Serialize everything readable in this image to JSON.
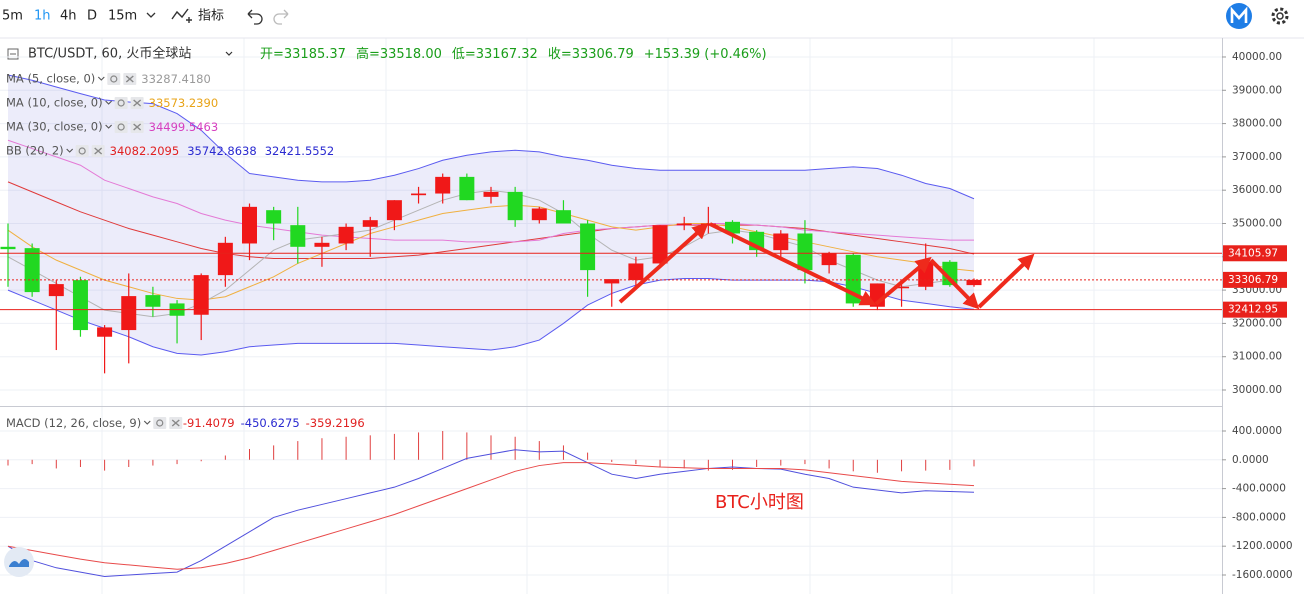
{
  "toolbar": {
    "intervals": [
      "5m",
      "1h",
      "4h",
      "D",
      "15m"
    ],
    "indicators": "指标"
  },
  "legend": {
    "symbol": "BTC/USDT, 60, 火币全球站",
    "open": "开=33185.37",
    "high": "高=33518.00",
    "low": "低=33167.32",
    "close": "收=33306.79",
    "change": "+153.39 (+0.46%)",
    "indicators": [
      {
        "name": "MA (5, close, 0)",
        "values": [
          "33287.4180"
        ],
        "colors": [
          "#9a9a9a"
        ]
      },
      {
        "name": "MA (10, close, 0)",
        "values": [
          "33573.2390"
        ],
        "colors": [
          "#e8a317"
        ]
      },
      {
        "name": "MA (30, close, 0)",
        "values": [
          "34499.5463"
        ],
        "colors": [
          "#d63fbf"
        ]
      },
      {
        "name": "BB (20, 2)",
        "values": [
          "34082.2095",
          "35742.8638",
          "32421.5552"
        ],
        "colors": [
          "#e02020",
          "#2a2ad0",
          "#2a2ad0"
        ]
      }
    ]
  },
  "chart_data": [
    {
      "type": "candlestick",
      "up_color": "#f01818",
      "down_color": "#21d821",
      "ylim": [
        29550,
        40570
      ],
      "yticks": [
        {
          "value": 30000,
          "label": "30000.00"
        },
        {
          "value": 31000,
          "label": "31000.00"
        },
        {
          "value": 32000,
          "label": "32000.00"
        },
        {
          "value": 33000,
          "label": "33000.00"
        },
        {
          "value": 34000,
          "label": "34000.00"
        },
        {
          "value": 35000,
          "label": "35000.00"
        },
        {
          "value": 36000,
          "label": "36000.00"
        },
        {
          "value": 37000,
          "label": "37000.00"
        },
        {
          "value": 38000,
          "label": "38000.00"
        },
        {
          "value": 39000,
          "label": "39000.00"
        },
        {
          "value": 40000,
          "label": "40000.00"
        }
      ],
      "grid": true,
      "open": [
        34300,
        34260,
        32820,
        33300,
        31600,
        31800,
        32850,
        32600,
        32260,
        33450,
        34400,
        35400,
        34950,
        34300,
        34400,
        34900,
        35100,
        35850,
        35900,
        36400,
        35800,
        35950,
        35100,
        35400,
        35000,
        33200,
        33300,
        33800,
        34950,
        35000,
        35050,
        34750,
        34200,
        34700,
        33750,
        34060,
        32500,
        33100,
        33100,
        33850,
        33150
      ],
      "high": [
        35000,
        34400,
        33300,
        33400,
        31950,
        33500,
        33100,
        32700,
        33500,
        34600,
        35600,
        35500,
        35500,
        34600,
        35000,
        35200,
        35700,
        36100,
        36500,
        36500,
        36100,
        36100,
        35500,
        35700,
        35100,
        33300,
        34000,
        34950,
        35200,
        35500,
        35100,
        34800,
        34800,
        35100,
        34150,
        34100,
        33200,
        33200,
        34400,
        33900,
        33350
      ],
      "low": [
        33100,
        32800,
        31200,
        31600,
        30500,
        30800,
        32200,
        31400,
        31500,
        33100,
        33900,
        34500,
        33800,
        33700,
        34200,
        34000,
        34800,
        35600,
        35600,
        35700,
        35600,
        34900,
        35000,
        35000,
        32800,
        32500,
        33100,
        33700,
        34800,
        34700,
        34400,
        34000,
        34000,
        33200,
        33500,
        32500,
        32400,
        32500,
        33000,
        33100,
        33100
      ],
      "close": [
        34230,
        32940,
        33180,
        31800,
        31880,
        32820,
        32500,
        32230,
        33450,
        34420,
        35500,
        35000,
        34300,
        34420,
        34900,
        35100,
        35700,
        35900,
        36400,
        35700,
        35950,
        35100,
        35450,
        35000,
        33600,
        33330,
        33800,
        34950,
        35000,
        35000,
        34700,
        34200,
        34700,
        33600,
        34100,
        32600,
        33200,
        33100,
        33850,
        33150,
        33306.79
      ],
      "series": [
        {
          "name": "BB upper",
          "color": "#5b5bf0",
          "values": [
            39460,
            39300,
            39100,
            38900,
            38710,
            38650,
            38600,
            38300,
            37800,
            37100,
            36500,
            36400,
            36300,
            36250,
            36250,
            36300,
            36450,
            36650,
            36900,
            37050,
            37150,
            37200,
            37150,
            37000,
            36900,
            36750,
            36650,
            36600,
            36600,
            36600,
            36600,
            36600,
            36600,
            36600,
            36650,
            36700,
            36650,
            36450,
            36200,
            36050,
            35742.8638
          ]
        },
        {
          "name": "BB lower",
          "color": "#5b5bf0",
          "values": [
            33000,
            32700,
            32400,
            32100,
            31850,
            31600,
            31300,
            31100,
            31050,
            31150,
            31300,
            31350,
            31400,
            31400,
            31400,
            31400,
            31400,
            31350,
            31300,
            31250,
            31200,
            31300,
            31500,
            32000,
            32550,
            32900,
            33150,
            33300,
            33350,
            33350,
            33300,
            33300,
            33300,
            33300,
            33250,
            33100,
            32900,
            32700,
            32600,
            32500,
            32421.5552
          ]
        },
        {
          "name": "BB basis",
          "color": "#e03a3a",
          "values": [
            36250,
            35950,
            35650,
            35350,
            35100,
            34850,
            34650,
            34450,
            34250,
            34100,
            34000,
            33950,
            33950,
            33950,
            33950,
            33950,
            34000,
            34050,
            34150,
            34250,
            34350,
            34450,
            34550,
            34650,
            34750,
            34850,
            34900,
            34950,
            34950,
            34950,
            34950,
            34950,
            34900,
            34850,
            34750,
            34650,
            34550,
            34450,
            34350,
            34250,
            34082.2095
          ]
        },
        {
          "name": "MA30",
          "color": "#e47ad6",
          "values": [
            37500,
            37250,
            37000,
            36750,
            36300,
            36050,
            35800,
            35600,
            35300,
            35100,
            34950,
            34850,
            34750,
            34650,
            34600,
            34550,
            34500,
            34500,
            34500,
            34450,
            34450,
            34450,
            34500,
            34700,
            34800,
            34850,
            34900,
            34950,
            34950,
            35000,
            35000,
            34950,
            34900,
            34800,
            34750,
            34700,
            34650,
            34600,
            34550,
            34500,
            34499.5463
          ]
        },
        {
          "name": "MA10",
          "color": "#f0b040",
          "values": [
            34800,
            34300,
            33900,
            33600,
            33300,
            33100,
            32900,
            32750,
            32700,
            32800,
            33100,
            33400,
            33800,
            34100,
            34400,
            34700,
            34900,
            35100,
            35300,
            35400,
            35500,
            35550,
            35500,
            35300,
            35100,
            34900,
            34800,
            34900,
            35000,
            35000,
            34900,
            34750,
            34600,
            34450,
            34300,
            34150,
            34000,
            33900,
            33800,
            33650,
            33573.239
          ]
        },
        {
          "name": "MA5",
          "color": "#b4b4b4",
          "values": [
            34000,
            33600,
            33200,
            32800,
            32400,
            32300,
            32200,
            32300,
            32600,
            33000,
            33600,
            34200,
            34500,
            34600,
            34700,
            34800,
            35100,
            35400,
            35700,
            35900,
            36000,
            35900,
            35700,
            35300,
            34700,
            34200,
            33900,
            34000,
            34300,
            34700,
            34800,
            34700,
            34500,
            34300,
            33900,
            33600,
            33300,
            33100,
            33200,
            33300,
            33287.418
          ]
        }
      ],
      "band_fill": "rgba(120,120,220,0.14)",
      "price_lines": [
        {
          "value": 34105.97,
          "label": "34105.97",
          "style": "solid",
          "color": "#e8211b"
        },
        {
          "value": 33306.79,
          "label": "33306.79",
          "style": "dotted",
          "color": "#e8211b"
        },
        {
          "value": 32412.95,
          "label": "32412.95",
          "style": "solid",
          "color": "#e8211b"
        }
      ]
    },
    {
      "type": "macd",
      "title": "MACD (12, 26, close, 9)",
      "value_labels": [
        "-91.4079",
        "-450.6275",
        "-359.2196"
      ],
      "label_colors": [
        "#e02020",
        "#2a2ad0",
        "#e02020"
      ],
      "ylim": [
        -1800,
        600
      ],
      "yticks": [
        {
          "value": 400,
          "label": "400.0000"
        },
        {
          "value": 0,
          "label": "0.0000"
        },
        {
          "value": -400,
          "label": "-400.0000"
        },
        {
          "value": -800,
          "label": "-800.0000"
        },
        {
          "value": -1200,
          "label": "-1200.0000"
        },
        {
          "value": -1600,
          "label": "-1600.0000"
        }
      ],
      "grid": true,
      "hist_color": "#e04040",
      "histogram": [
        -80,
        -60,
        -120,
        -100,
        -150,
        -100,
        -80,
        -60,
        -20,
        60,
        150,
        200,
        260,
        300,
        320,
        340,
        360,
        380,
        400,
        380,
        340,
        320,
        260,
        200,
        100,
        -30,
        -60,
        -100,
        -120,
        -150,
        -140,
        -100,
        -80,
        -60,
        -120,
        -160,
        -180,
        -160,
        -150,
        -140,
        -91.4079
      ],
      "series": [
        {
          "name": "MACD",
          "color": "#5050dd",
          "values": [
            -1200,
            -1400,
            -1500,
            -1560,
            -1620,
            -1600,
            -1580,
            -1560,
            -1400,
            -1200,
            -1000,
            -800,
            -700,
            -620,
            -540,
            -460,
            -380,
            -260,
            -120,
            20,
            80,
            140,
            110,
            120,
            -40,
            -200,
            -260,
            -200,
            -160,
            -120,
            -100,
            -120,
            -130,
            -200,
            -260,
            -380,
            -420,
            -460,
            -430,
            -440,
            -450.6275
          ]
        },
        {
          "name": "Signal",
          "color": "#e84a4a",
          "values": [
            -1200,
            -1260,
            -1320,
            -1380,
            -1430,
            -1460,
            -1490,
            -1520,
            -1500,
            -1440,
            -1360,
            -1260,
            -1160,
            -1060,
            -960,
            -860,
            -760,
            -640,
            -520,
            -400,
            -280,
            -160,
            -80,
            -40,
            -40,
            -60,
            -80,
            -100,
            -110,
            -120,
            -120,
            -120,
            -120,
            -140,
            -180,
            -220,
            -260,
            -300,
            -320,
            -340,
            -359.2196
          ]
        }
      ]
    }
  ],
  "annotation": "BTC小时图"
}
